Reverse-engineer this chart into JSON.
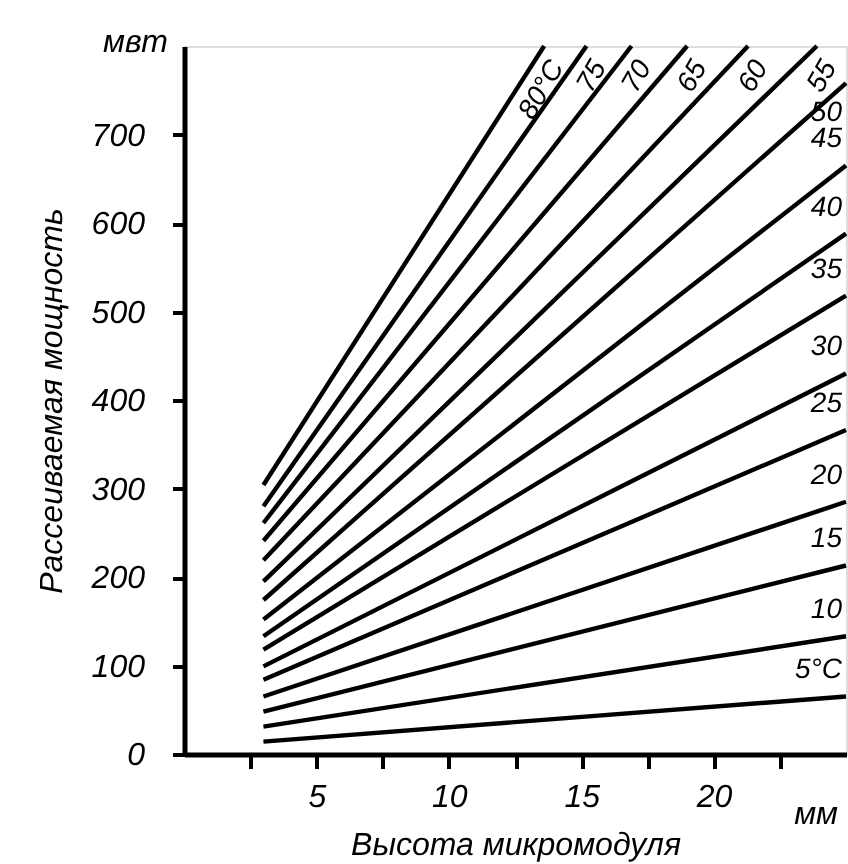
{
  "chart_data": {
    "type": "line",
    "xlabel": "Высота микромодуля",
    "ylabel": "Рассеиваемая мощность",
    "xlim": [
      0,
      25
    ],
    "ylim": [
      0,
      800
    ],
    "xticks": [
      {
        "value": 2.5,
        "label": null
      },
      5,
      {
        "value": 7.5,
        "label": null
      },
      10,
      {
        "value": 12.5,
        "label": null
      },
      15,
      {
        "value": 17.5,
        "label": null
      },
      20,
      {
        "value": 22.5,
        "label": null
      }
    ],
    "yticks": [
      0,
      100,
      200,
      300,
      400,
      500,
      600,
      700
    ],
    "annotations": [
      "мвт",
      "мм"
    ],
    "grid": false,
    "legend": false,
    "marker": "none",
    "line_style": "solid",
    "series": [
      {
        "name": "80°C",
        "color": "#000000",
        "x": [
          3,
          13.6
        ],
        "values": [
          304,
          800
        ]
      },
      {
        "name": "75",
        "color": "#000000",
        "x": [
          3,
          15.2
        ],
        "values": [
          280,
          800
        ]
      },
      {
        "name": "70",
        "color": "#000000",
        "x": [
          3,
          16.9
        ],
        "values": [
          261,
          800
        ]
      },
      {
        "name": "65",
        "color": "#000000",
        "x": [
          3,
          19.0
        ],
        "values": [
          241,
          800
        ]
      },
      {
        "name": "60",
        "color": "#000000",
        "x": [
          3,
          21.3
        ],
        "values": [
          219,
          800
        ]
      },
      {
        "name": "55",
        "color": "#000000",
        "x": [
          3,
          23.9
        ],
        "values": [
          195,
          800
        ]
      },
      {
        "name": "50",
        "color": "#000000",
        "x": [
          3,
          25
        ],
        "values": [
          174,
          758
        ]
      },
      {
        "name": "45",
        "color": "#000000",
        "x": [
          3,
          25
        ],
        "values": [
          152,
          665
        ]
      },
      {
        "name": "40",
        "color": "#000000",
        "x": [
          3,
          25
        ],
        "values": [
          133,
          588
        ]
      },
      {
        "name": "35",
        "color": "#000000",
        "x": [
          3,
          25
        ],
        "values": [
          118,
          518
        ]
      },
      {
        "name": "30",
        "color": "#000000",
        "x": [
          3,
          25
        ],
        "values": [
          99,
          430
        ]
      },
      {
        "name": "25",
        "color": "#000000",
        "x": [
          3,
          25
        ],
        "values": [
          84,
          366
        ]
      },
      {
        "name": "20",
        "color": "#000000",
        "x": [
          3,
          25
        ],
        "values": [
          65,
          285
        ]
      },
      {
        "name": "15",
        "color": "#000000",
        "x": [
          3,
          25
        ],
        "values": [
          48,
          213
        ]
      },
      {
        "name": "10",
        "color": "#000000",
        "x": [
          3,
          25
        ],
        "values": [
          31,
          133
        ]
      },
      {
        "name": "5°C",
        "color": "#000000",
        "x": [
          3,
          25
        ],
        "values": [
          14,
          65
        ]
      }
    ]
  }
}
